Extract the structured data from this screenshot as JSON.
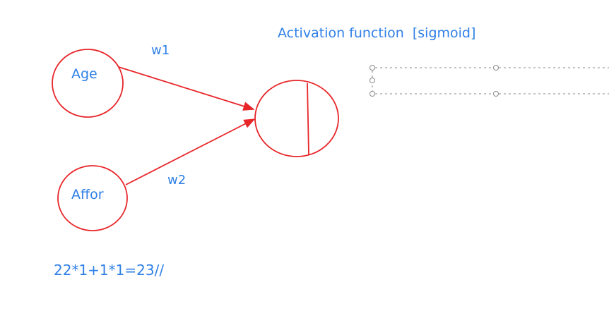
{
  "title": "Activation function  [sigmoid]",
  "inputs": [
    {
      "label": "Age"
    },
    {
      "label": "Affor"
    }
  ],
  "weights": [
    "w1",
    "w2"
  ],
  "formula": "22*1+1*1=23//",
  "colors": {
    "ink": "#2f80e6",
    "drawing": "#e8262a",
    "selection": "#8a8a8a"
  }
}
